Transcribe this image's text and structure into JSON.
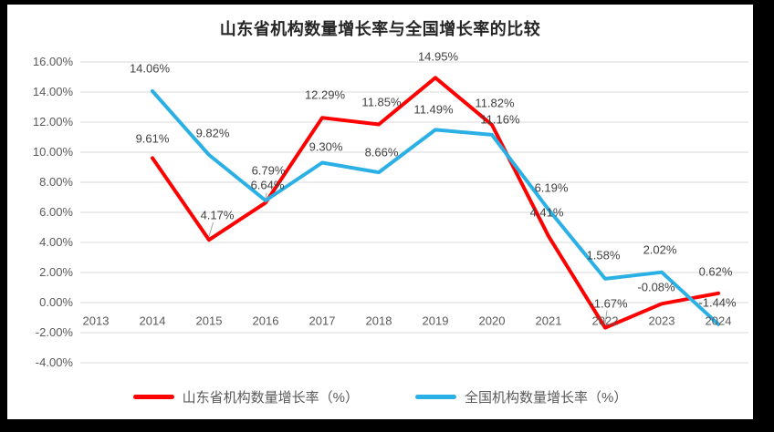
{
  "chart_data": {
    "type": "line",
    "title": "山东省机构数量增长率与全国增长率的比较",
    "categories": [
      "2013",
      "2014",
      "2015",
      "2016",
      "2017",
      "2018",
      "2019",
      "2020",
      "2021",
      "2022",
      "2023",
      "2024"
    ],
    "series": [
      {
        "name": "山东省机构数量增长率（%）",
        "color": "#fe0000",
        "values": [
          null,
          9.61,
          4.17,
          6.64,
          12.29,
          11.85,
          14.95,
          11.82,
          4.41,
          -1.67,
          -0.08,
          0.62
        ]
      },
      {
        "name": "全国机构数量增长率（%）",
        "color": "#2bb0e5",
        "values": [
          null,
          14.06,
          9.82,
          6.79,
          9.3,
          8.66,
          11.49,
          11.16,
          6.19,
          1.58,
          2.02,
          -1.44
        ]
      }
    ],
    "ylim": [
      -4,
      16
    ],
    "ytick_step": 2,
    "y_tick_labels": [
      "16.00%",
      "14.00%",
      "12.00%",
      "10.00%",
      "8.00%",
      "6.00%",
      "4.00%",
      "2.00%",
      "0.00%",
      "-2.00%",
      "-4.00%"
    ],
    "data_label_format": "0.00%",
    "grid": true,
    "legend_position": "bottom"
  },
  "colors": {
    "frame": "#000000",
    "chart_background": "#ffffff",
    "gridline": "#d9d9d9",
    "axis_text": "#595959",
    "data_label_text": "#404040",
    "title_text": "#262626",
    "legend_text": "#595959",
    "leader_line": "#a6a6a6"
  }
}
